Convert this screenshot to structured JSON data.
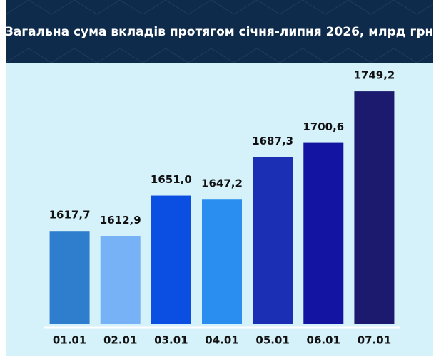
{
  "chart_data": {
    "type": "bar",
    "title": "Загальна сума вкладів протягом січня-липня 2026, млрд грн",
    "categories": [
      "01.01",
      "02.01",
      "03.01",
      "04.01",
      "05.01",
      "06.01",
      "07.01"
    ],
    "values": [
      1617.7,
      1612.9,
      1651.0,
      1647.2,
      1687.3,
      1700.6,
      1749.2
    ],
    "value_labels": [
      "1617,7",
      "1612,9",
      "1651,0",
      "1647,2",
      "1687,3",
      "1700,6",
      "1749,2"
    ],
    "colors": [
      "#2f7dcd",
      "#78b2f6",
      "#0b4ee2",
      "#2a8ef1",
      "#1b2fb4",
      "#1414a3",
      "#1b1a6e"
    ],
    "ylim": [
      1530,
      1760
    ]
  }
}
